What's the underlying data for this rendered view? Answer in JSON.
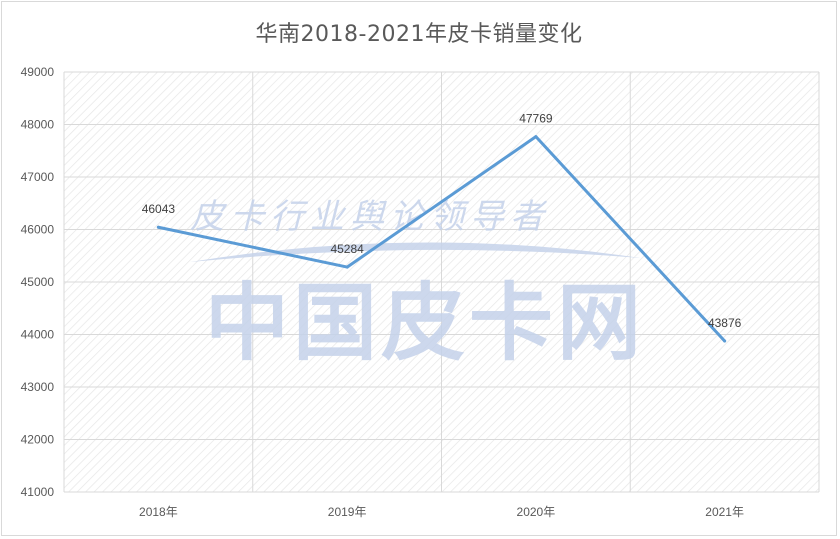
{
  "chart_data": {
    "type": "line",
    "title": "华南2018-2021年皮卡销量变化",
    "categories": [
      "2018年",
      "2019年",
      "2020年",
      "2021年"
    ],
    "series": [
      {
        "values": [
          46043,
          45284,
          47769,
          43876
        ],
        "color": "#5b9bd5"
      }
    ],
    "data_labels": [
      "46043",
      "45284",
      "47769",
      "43876"
    ],
    "y_ticks": [
      "41000",
      "42000",
      "43000",
      "44000",
      "45000",
      "46000",
      "47000",
      "48000",
      "49000"
    ],
    "ylim": [
      41000,
      49000
    ],
    "grid": true,
    "xlabel": "",
    "ylabel": ""
  },
  "watermark": {
    "main_text": "中国皮卡网",
    "sub_text": "皮卡行业舆论领导者"
  },
  "colors": {
    "line": "#5b9bd5",
    "grid": "#d9d9d9",
    "hatch": "#e6e6e6",
    "watermark": "#c5d2ea"
  }
}
